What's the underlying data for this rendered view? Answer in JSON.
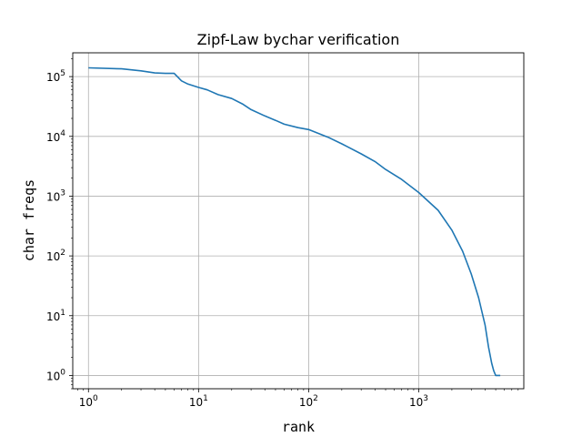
{
  "chart_data": {
    "type": "line",
    "title": "Zipf-Law bychar verification",
    "xlabel": "rank",
    "ylabel": "char freqs",
    "x_scale": "log",
    "y_scale": "log",
    "xlim": [
      0.72,
      9000
    ],
    "ylim": [
      0.6,
      250000
    ],
    "grid": true,
    "x_ticks": [
      {
        "value": 1,
        "base": "10",
        "exp": "0"
      },
      {
        "value": 10,
        "base": "10",
        "exp": "1"
      },
      {
        "value": 100,
        "base": "10",
        "exp": "2"
      },
      {
        "value": 1000,
        "base": "10",
        "exp": "3"
      }
    ],
    "y_ticks": [
      {
        "value": 1,
        "base": "10",
        "exp": "0"
      },
      {
        "value": 10,
        "base": "10",
        "exp": "1"
      },
      {
        "value": 100,
        "base": "10",
        "exp": "2"
      },
      {
        "value": 1000,
        "base": "10",
        "exp": "3"
      },
      {
        "value": 10000,
        "base": "10",
        "exp": "4"
      },
      {
        "value": 100000,
        "base": "10",
        "exp": "5"
      }
    ],
    "series": [
      {
        "color": "#1f77b4",
        "x": [
          1,
          2,
          3,
          4,
          5,
          6,
          7,
          8,
          9,
          10,
          12,
          15,
          20,
          25,
          30,
          40,
          50,
          60,
          80,
          100,
          150,
          200,
          300,
          400,
          500,
          700,
          1000,
          1500,
          2000,
          2500,
          3000,
          3500,
          4000,
          4300,
          4600,
          4800,
          5000,
          5500
        ],
        "y": [
          140000,
          135000,
          125000,
          115000,
          113000,
          113000,
          85000,
          75000,
          70000,
          66000,
          60000,
          50000,
          43000,
          35000,
          28000,
          22000,
          18500,
          16000,
          14000,
          13000,
          9700,
          7500,
          5100,
          3800,
          2800,
          1900,
          1150,
          580,
          270,
          120,
          50,
          20,
          7,
          3,
          1.6,
          1.2,
          1,
          1
        ]
      }
    ]
  }
}
